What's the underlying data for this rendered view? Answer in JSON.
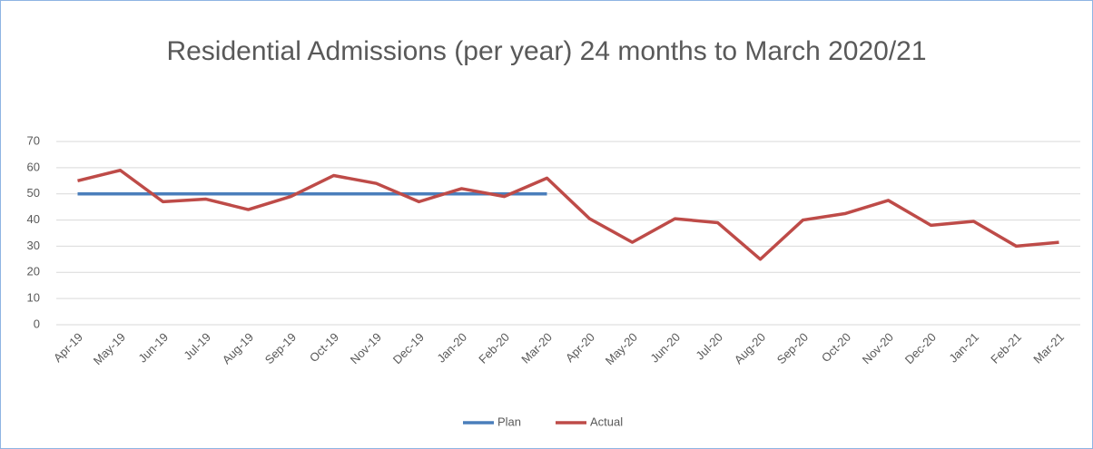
{
  "chart_data": {
    "type": "line",
    "title": "Residential Admissions (per year) 24 months to March 2020/21",
    "categories": [
      "Apr-19",
      "May-19",
      "Jun-19",
      "Jul-19",
      "Aug-19",
      "Sep-19",
      "Oct-19",
      "Nov-19",
      "Dec-19",
      "Jan-20",
      "Feb-20",
      "Mar-20",
      "Apr-20",
      "May-20",
      "Jun-20",
      "Jul-20",
      "Aug-20",
      "Sep-20",
      "Oct-20",
      "Nov-20",
      "Dec-20",
      "Jan-21",
      "Feb-21",
      "Mar-21"
    ],
    "series": [
      {
        "name": "Plan",
        "color": "#4a7ebb",
        "values": [
          50,
          50,
          50,
          50,
          50,
          50,
          50,
          50,
          50,
          50,
          50,
          50,
          null,
          null,
          null,
          null,
          null,
          null,
          null,
          null,
          null,
          null,
          null,
          null
        ]
      },
      {
        "name": "Actual",
        "color": "#be4b48",
        "values": [
          55,
          59,
          47,
          48,
          44,
          49,
          57,
          54,
          47,
          52,
          49,
          56,
          40.5,
          31.5,
          40.5,
          39,
          25,
          40,
          42.5,
          47.5,
          38,
          39.5,
          30,
          31.5
        ]
      }
    ],
    "ylim": [
      0,
      70
    ],
    "yticks": [
      0,
      10,
      20,
      30,
      40,
      50,
      60,
      70
    ],
    "grid": true,
    "legend": "bottom"
  }
}
